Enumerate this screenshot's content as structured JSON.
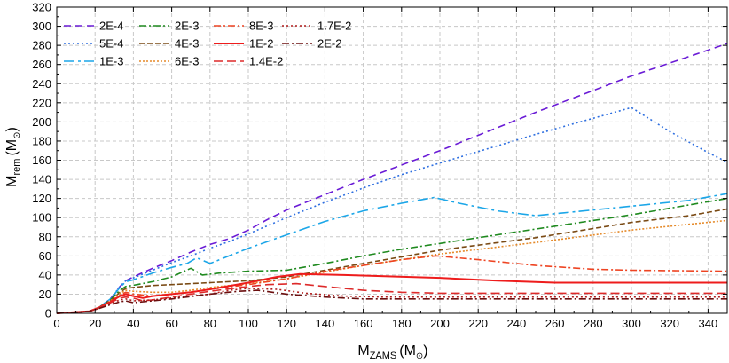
{
  "chart_data": {
    "type": "line",
    "title": "",
    "xlabel": {
      "main": "M",
      "sub": "ZAMS",
      "unit": "(M",
      "unit_sub": "⊙",
      "unit_end": ")"
    },
    "ylabel": {
      "main": "M",
      "sub": "rem",
      "unit": "(M",
      "unit_sub": "⊙",
      "unit_end": ")"
    },
    "xlim": [
      0,
      350
    ],
    "ylim": [
      0,
      320
    ],
    "xticks": [
      0,
      20,
      40,
      60,
      80,
      100,
      120,
      140,
      160,
      180,
      200,
      220,
      240,
      260,
      280,
      300,
      320,
      340
    ],
    "yticks": [
      0,
      20,
      40,
      60,
      80,
      100,
      120,
      140,
      160,
      180,
      200,
      220,
      240,
      260,
      280,
      300,
      320
    ],
    "grid": true,
    "legend_position": "top-left",
    "series": [
      {
        "name": "2E-4",
        "color": "#6a1bd6",
        "dash": "8 5",
        "points": [
          [
            0,
            0
          ],
          [
            8,
            1
          ],
          [
            17,
            2
          ],
          [
            22,
            6
          ],
          [
            28,
            15
          ],
          [
            33,
            28
          ],
          [
            36,
            34
          ],
          [
            40,
            38
          ],
          [
            50,
            47
          ],
          [
            60,
            55
          ],
          [
            70,
            64
          ],
          [
            80,
            72
          ],
          [
            90,
            78
          ],
          [
            100,
            87
          ],
          [
            110,
            98
          ],
          [
            120,
            108
          ],
          [
            140,
            124
          ],
          [
            160,
            140
          ],
          [
            180,
            155
          ],
          [
            200,
            170
          ],
          [
            250,
            210
          ],
          [
            300,
            248
          ],
          [
            340,
            275
          ],
          [
            350,
            282
          ]
        ]
      },
      {
        "name": "5E-4",
        "color": "#2e6fe0",
        "dash": "2 3",
        "points": [
          [
            0,
            0
          ],
          [
            8,
            1
          ],
          [
            17,
            2
          ],
          [
            22,
            6
          ],
          [
            28,
            15
          ],
          [
            33,
            28
          ],
          [
            36,
            34
          ],
          [
            40,
            37
          ],
          [
            50,
            45
          ],
          [
            60,
            53
          ],
          [
            70,
            60
          ],
          [
            80,
            68
          ],
          [
            90,
            75
          ],
          [
            100,
            83
          ],
          [
            120,
            100
          ],
          [
            140,
            116
          ],
          [
            160,
            131
          ],
          [
            180,
            145
          ],
          [
            200,
            157
          ],
          [
            250,
            187
          ],
          [
            300,
            215
          ],
          [
            320,
            190
          ],
          [
            340,
            168
          ],
          [
            350,
            158
          ]
        ]
      },
      {
        "name": "1E-3",
        "color": "#1ba6e8",
        "dash": "12 4 3 4",
        "points": [
          [
            0,
            0
          ],
          [
            8,
            1
          ],
          [
            17,
            2
          ],
          [
            22,
            6
          ],
          [
            28,
            15
          ],
          [
            33,
            27
          ],
          [
            36,
            33
          ],
          [
            40,
            35
          ],
          [
            50,
            42
          ],
          [
            60,
            48
          ],
          [
            68,
            52
          ],
          [
            73,
            58
          ],
          [
            80,
            52
          ],
          [
            90,
            60
          ],
          [
            100,
            68
          ],
          [
            120,
            82
          ],
          [
            140,
            96
          ],
          [
            160,
            107
          ],
          [
            180,
            115
          ],
          [
            197,
            121
          ],
          [
            210,
            115
          ],
          [
            230,
            107
          ],
          [
            250,
            102
          ],
          [
            270,
            106
          ],
          [
            300,
            112
          ],
          [
            330,
            118
          ],
          [
            350,
            125
          ]
        ]
      },
      {
        "name": "2E-3",
        "color": "#1f8a1f",
        "dash": "8 3 2 3",
        "points": [
          [
            0,
            0
          ],
          [
            8,
            1
          ],
          [
            17,
            2
          ],
          [
            22,
            6
          ],
          [
            28,
            14
          ],
          [
            33,
            24
          ],
          [
            36,
            28
          ],
          [
            42,
            30
          ],
          [
            50,
            33
          ],
          [
            60,
            38
          ],
          [
            70,
            47
          ],
          [
            76,
            40
          ],
          [
            85,
            42
          ],
          [
            100,
            44
          ],
          [
            120,
            45
          ],
          [
            140,
            52
          ],
          [
            160,
            60
          ],
          [
            180,
            67
          ],
          [
            200,
            73
          ],
          [
            250,
            88
          ],
          [
            300,
            103
          ],
          [
            350,
            120
          ]
        ]
      },
      {
        "name": "4E-3",
        "color": "#7a4a14",
        "dash": "6 3",
        "points": [
          [
            0,
            0
          ],
          [
            8,
            1
          ],
          [
            17,
            2
          ],
          [
            22,
            6
          ],
          [
            28,
            13
          ],
          [
            33,
            22
          ],
          [
            36,
            26
          ],
          [
            40,
            27
          ],
          [
            50,
            29
          ],
          [
            60,
            30
          ],
          [
            70,
            31
          ],
          [
            80,
            32
          ],
          [
            100,
            34
          ],
          [
            120,
            38
          ],
          [
            140,
            45
          ],
          [
            160,
            52
          ],
          [
            180,
            59
          ],
          [
            200,
            66
          ],
          [
            250,
            79
          ],
          [
            300,
            95
          ],
          [
            330,
            102
          ],
          [
            350,
            109
          ]
        ]
      },
      {
        "name": "6E-3",
        "color": "#e58a2a",
        "dash": "2 2",
        "points": [
          [
            0,
            0
          ],
          [
            8,
            1
          ],
          [
            17,
            2
          ],
          [
            22,
            6
          ],
          [
            28,
            13
          ],
          [
            33,
            21
          ],
          [
            36,
            24
          ],
          [
            40,
            23
          ],
          [
            50,
            22
          ],
          [
            60,
            22
          ],
          [
            70,
            24
          ],
          [
            80,
            27
          ],
          [
            100,
            31
          ],
          [
            120,
            36
          ],
          [
            140,
            43
          ],
          [
            160,
            50
          ],
          [
            180,
            56
          ],
          [
            200,
            62
          ],
          [
            250,
            74
          ],
          [
            300,
            87
          ],
          [
            330,
            93
          ],
          [
            350,
            97
          ]
        ]
      },
      {
        "name": "8E-3",
        "color": "#ee4422",
        "dash": "8 3 2 3",
        "points": [
          [
            0,
            0
          ],
          [
            8,
            1
          ],
          [
            17,
            2
          ],
          [
            22,
            6
          ],
          [
            28,
            12
          ],
          [
            33,
            19
          ],
          [
            36,
            22
          ],
          [
            40,
            20
          ],
          [
            50,
            18
          ],
          [
            60,
            20
          ],
          [
            70,
            22
          ],
          [
            80,
            25
          ],
          [
            100,
            30
          ],
          [
            120,
            36
          ],
          [
            140,
            44
          ],
          [
            160,
            50
          ],
          [
            180,
            56
          ],
          [
            198,
            60
          ],
          [
            220,
            56
          ],
          [
            250,
            50
          ],
          [
            280,
            46
          ],
          [
            300,
            45
          ],
          [
            350,
            44
          ]
        ]
      },
      {
        "name": "1E-2",
        "color": "#ee1c1c",
        "dash": "",
        "points": [
          [
            0,
            0
          ],
          [
            8,
            1
          ],
          [
            17,
            2
          ],
          [
            22,
            6
          ],
          [
            28,
            12
          ],
          [
            33,
            18
          ],
          [
            36,
            20
          ],
          [
            40,
            18
          ],
          [
            45,
            16
          ],
          [
            50,
            18
          ],
          [
            60,
            20
          ],
          [
            70,
            22
          ],
          [
            80,
            25
          ],
          [
            100,
            32
          ],
          [
            115,
            38
          ],
          [
            127,
            41
          ],
          [
            150,
            40
          ],
          [
            200,
            37
          ],
          [
            230,
            34
          ],
          [
            260,
            32
          ],
          [
            300,
            32
          ],
          [
            350,
            32
          ]
        ]
      },
      {
        "name": "1.4E-2",
        "color": "#dd2a2a",
        "dash": "10 5",
        "points": [
          [
            0,
            0
          ],
          [
            8,
            1
          ],
          [
            17,
            2
          ],
          [
            22,
            6
          ],
          [
            28,
            11
          ],
          [
            33,
            16
          ],
          [
            36,
            17
          ],
          [
            40,
            16
          ],
          [
            45,
            13
          ],
          [
            50,
            14
          ],
          [
            60,
            17
          ],
          [
            70,
            20
          ],
          [
            80,
            23
          ],
          [
            100,
            28
          ],
          [
            110,
            30
          ],
          [
            125,
            31
          ],
          [
            140,
            28
          ],
          [
            160,
            24
          ],
          [
            180,
            22
          ],
          [
            200,
            21
          ],
          [
            250,
            21
          ],
          [
            300,
            21
          ],
          [
            350,
            21
          ]
        ]
      },
      {
        "name": "1.7E-2",
        "color": "#b01e1e",
        "dash": "2 3",
        "points": [
          [
            0,
            0
          ],
          [
            8,
            1
          ],
          [
            17,
            2
          ],
          [
            22,
            5
          ],
          [
            28,
            10
          ],
          [
            33,
            14
          ],
          [
            36,
            15
          ],
          [
            40,
            13
          ],
          [
            50,
            14
          ],
          [
            60,
            16
          ],
          [
            80,
            20
          ],
          [
            90,
            24
          ],
          [
            100,
            26
          ],
          [
            115,
            25
          ],
          [
            130,
            21
          ],
          [
            150,
            18
          ],
          [
            170,
            17
          ],
          [
            200,
            17
          ],
          [
            250,
            17
          ],
          [
            300,
            17
          ],
          [
            350,
            17
          ]
        ]
      },
      {
        "name": "2E-2",
        "color": "#6b0f0f",
        "dash": "8 3 2 3",
        "points": [
          [
            0,
            0
          ],
          [
            8,
            1
          ],
          [
            17,
            2
          ],
          [
            22,
            5
          ],
          [
            28,
            9
          ],
          [
            33,
            12
          ],
          [
            36,
            13
          ],
          [
            40,
            11
          ],
          [
            50,
            13
          ],
          [
            60,
            15
          ],
          [
            80,
            20
          ],
          [
            95,
            23
          ],
          [
            105,
            24
          ],
          [
            120,
            20
          ],
          [
            140,
            17
          ],
          [
            160,
            15
          ],
          [
            200,
            15
          ],
          [
            250,
            15
          ],
          [
            300,
            15
          ],
          [
            350,
            15
          ]
        ]
      }
    ]
  }
}
